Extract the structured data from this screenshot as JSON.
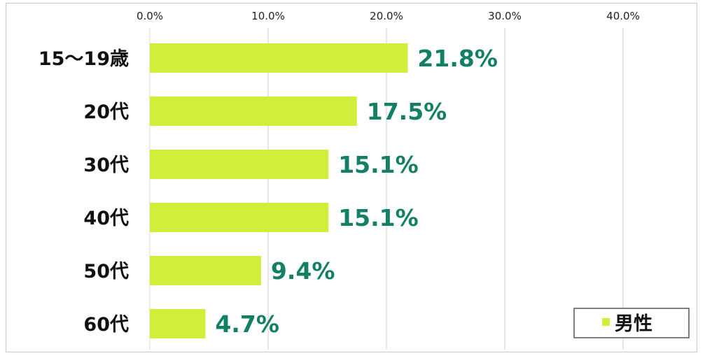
{
  "chart_data": {
    "type": "bar",
    "orientation": "horizontal",
    "categories": [
      "15～19歳",
      "20代",
      "30代",
      "40代",
      "50代",
      "60代"
    ],
    "series": [
      {
        "name": "男性",
        "values": [
          21.8,
          17.5,
          15.1,
          15.1,
          9.4,
          4.7
        ]
      }
    ],
    "data_labels": [
      "21.8%",
      "17.5%",
      "15.1%",
      "15.1%",
      "9.4%",
      "4.7%"
    ],
    "x_ticks": [
      "0.0%",
      "10.0%",
      "20.0%",
      "30.0%",
      "40.0%"
    ],
    "xlim": [
      0,
      40
    ],
    "x_axis_position": "top",
    "grid": true,
    "legend_position": "bottom-right",
    "colors": {
      "bar": "#cfef3b",
      "data_label": "#137f65",
      "grid": "#cccccc"
    }
  }
}
